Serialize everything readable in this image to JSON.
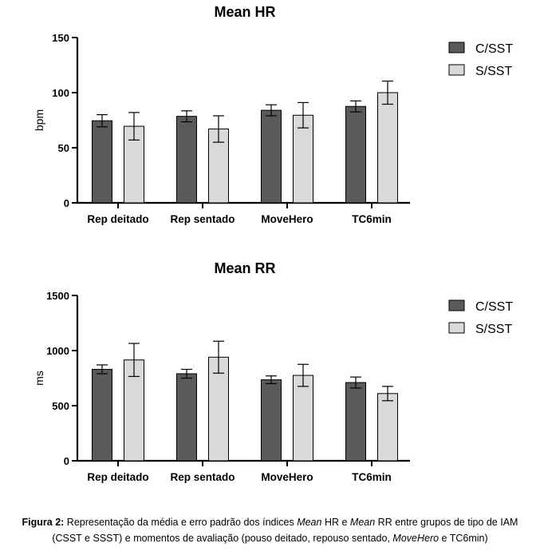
{
  "chart_data": [
    {
      "type": "bar",
      "title": "Mean HR",
      "ylabel": "bpm",
      "xlabel": "",
      "ylim": [
        0,
        150
      ],
      "yticks": [
        0,
        50,
        100,
        150
      ],
      "categories": [
        "Rep deitado",
        "Rep sentado",
        "MoveHero",
        "TC6min"
      ],
      "legend_position": "top-right",
      "series": [
        {
          "name": "C/SST",
          "color": "#5a5a5a",
          "values": [
            74.5,
            78.5,
            84,
            87.5
          ],
          "errors": [
            5.5,
            5,
            5,
            5
          ]
        },
        {
          "name": "S/SST",
          "color": "#d9d9d9",
          "values": [
            69.5,
            67,
            79.5,
            100
          ],
          "errors": [
            12.5,
            12,
            11.5,
            10.5
          ]
        }
      ]
    },
    {
      "type": "bar",
      "title": "Mean RR",
      "ylabel": "ms",
      "xlabel": "",
      "ylim": [
        0,
        1500
      ],
      "yticks": [
        0,
        500,
        1000,
        1500
      ],
      "categories": [
        "Rep deitado",
        "Rep sentado",
        "MoveHero",
        "TC6min"
      ],
      "legend_position": "top-right",
      "series": [
        {
          "name": "C/SST",
          "color": "#5a5a5a",
          "values": [
            830,
            790,
            735,
            710
          ],
          "errors": [
            40,
            40,
            35,
            50
          ]
        },
        {
          "name": "S/SST",
          "color": "#d9d9d9",
          "values": [
            915,
            940,
            775,
            610
          ],
          "errors": [
            150,
            145,
            100,
            65
          ]
        }
      ]
    }
  ],
  "caption": {
    "label": "Figura 2:",
    "t1": " Representação da média e erro padrão dos índices ",
    "i1": "Mean",
    "t2": " HR e ",
    "i2": "Mean",
    "t3": " RR entre grupos de tipo de IAM",
    "t4": "(CSST e SSST) e momentos de avaliação (pouso deitado, repouso sentado, ",
    "i3": "MoveHero",
    "t5": " e TC6min)"
  }
}
